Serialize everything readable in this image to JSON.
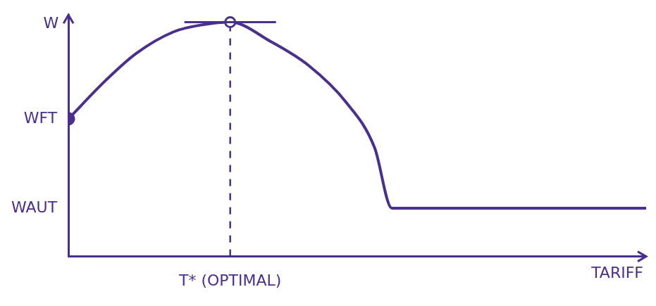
{
  "chart_data": {
    "type": "line",
    "x_label": "TARIFF",
    "y_label": "W",
    "x": [
      0,
      6.5,
      11.7,
      18.2,
      23.4,
      28,
      35,
      41.6,
      48,
      53,
      56,
      100
    ],
    "values": [
      57,
      73,
      84,
      93,
      96,
      97,
      89,
      79,
      64,
      45,
      20,
      20
    ],
    "color": "#4b2f8f",
    "xlim": [
      0,
      100
    ],
    "ylim": [
      0,
      100
    ],
    "xticks": [
      {
        "value": 28,
        "label": "T* (OPTIMAL)"
      }
    ],
    "yticks": [
      {
        "value": 20,
        "label": "WAUT"
      },
      {
        "value": 57,
        "label": "WFT"
      }
    ],
    "grid": false
  }
}
